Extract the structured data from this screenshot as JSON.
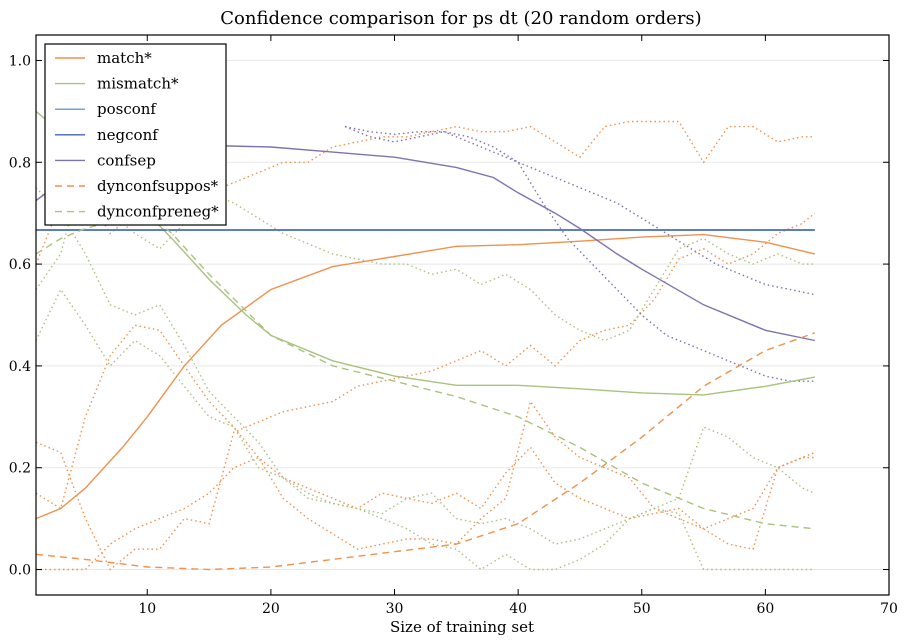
{
  "chart_data": {
    "type": "line",
    "title": "Confidence comparison for ps dt (20 random orders)",
    "xlabel": "Size of training set",
    "ylabel": "",
    "xlim": [
      1,
      70
    ],
    "ylim": [
      -0.05,
      1.05
    ],
    "xticks": [
      10,
      20,
      30,
      40,
      50,
      60,
      70
    ],
    "yticks": [
      0.0,
      0.2,
      0.4,
      0.6,
      0.8,
      1.0
    ],
    "xtick_labels": [
      "10",
      "20",
      "30",
      "40",
      "50",
      "60",
      "70"
    ],
    "ytick_labels": [
      "0.0",
      "0.2",
      "0.4",
      "0.6",
      "0.8",
      "1.0"
    ],
    "grid": "horizontal",
    "legend_position": "top-left",
    "series": [
      {
        "name": "match*",
        "color": "#f0914d",
        "style": "solid",
        "x": [
          1,
          3,
          5,
          8,
          10,
          13,
          16,
          20,
          25,
          30,
          35,
          40,
          45,
          50,
          55,
          60,
          64
        ],
        "y": [
          0.1,
          0.12,
          0.16,
          0.24,
          0.3,
          0.4,
          0.48,
          0.55,
          0.595,
          0.615,
          0.635,
          0.638,
          0.645,
          0.653,
          0.658,
          0.643,
          0.62
        ]
      },
      {
        "name": "mismatch*",
        "color": "#a9c27f",
        "style": "solid",
        "x": [
          1,
          3,
          5,
          8,
          10,
          12,
          15,
          18,
          20,
          25,
          30,
          35,
          40,
          45,
          50,
          55,
          60,
          64
        ],
        "y": [
          0.9,
          0.86,
          0.8,
          0.73,
          0.7,
          0.65,
          0.57,
          0.5,
          0.46,
          0.41,
          0.38,
          0.362,
          0.362,
          0.355,
          0.347,
          0.343,
          0.36,
          0.378
        ]
      },
      {
        "name": "posconf",
        "color": "#6d97c8",
        "style": "solid",
        "x": [
          1,
          64
        ],
        "y": [
          0.667,
          0.667
        ]
      },
      {
        "name": "negconf",
        "color": "#4365b7",
        "style": "solid",
        "x": [
          1,
          64
        ],
        "y": [
          0.667,
          0.667
        ]
      },
      {
        "name": "confsep",
        "color": "#7e73ae",
        "style": "solid",
        "x": [
          1,
          3,
          5,
          8,
          10,
          15,
          20,
          25,
          30,
          35,
          38,
          40,
          43,
          45,
          48,
          50,
          55,
          60,
          64
        ],
        "y": [
          0.725,
          0.76,
          0.8,
          0.825,
          0.835,
          0.833,
          0.83,
          0.82,
          0.81,
          0.79,
          0.77,
          0.74,
          0.7,
          0.67,
          0.62,
          0.59,
          0.52,
          0.47,
          0.45
        ]
      },
      {
        "name": "dynconfsuppos*",
        "color": "#f0914d",
        "style": "dashed",
        "x": [
          1,
          5,
          10,
          15,
          20,
          25,
          30,
          35,
          40,
          45,
          50,
          55,
          60,
          64
        ],
        "y": [
          0.03,
          0.02,
          0.005,
          0.0,
          0.005,
          0.02,
          0.035,
          0.05,
          0.09,
          0.17,
          0.26,
          0.36,
          0.43,
          0.465
        ]
      },
      {
        "name": "dynconfpreneg*",
        "color": "#a9c27f",
        "style": "dashed",
        "x": [
          1,
          3,
          5,
          8,
          10,
          12,
          15,
          20,
          25,
          30,
          35,
          40,
          45,
          50,
          55,
          60,
          64
        ],
        "y": [
          0.62,
          0.65,
          0.67,
          0.69,
          0.7,
          0.66,
          0.58,
          0.46,
          0.4,
          0.37,
          0.34,
          0.3,
          0.24,
          0.17,
          0.12,
          0.09,
          0.08
        ]
      }
    ],
    "order_traces": [
      {
        "color": "#f0914d",
        "x": [
          1,
          3,
          5,
          7,
          9,
          11,
          13,
          15,
          17,
          19,
          21,
          23,
          25,
          27,
          29,
          31,
          33,
          35,
          37,
          39,
          41,
          43,
          45,
          47,
          49,
          51,
          53,
          55,
          57,
          59,
          61,
          63,
          64
        ],
        "y": [
          0.6,
          0.72,
          0.74,
          0.66,
          0.7,
          0.68,
          0.73,
          0.74,
          0.76,
          0.78,
          0.8,
          0.8,
          0.83,
          0.84,
          0.85,
          0.85,
          0.86,
          0.87,
          0.86,
          0.86,
          0.87,
          0.84,
          0.81,
          0.87,
          0.88,
          0.88,
          0.88,
          0.8,
          0.87,
          0.87,
          0.84,
          0.85,
          0.85
        ]
      },
      {
        "color": "#f0914d",
        "x": [
          1,
          3,
          5,
          7,
          9,
          11,
          13,
          15,
          17,
          19,
          21,
          23,
          25,
          27,
          29,
          31,
          33,
          35,
          37,
          39,
          41,
          43,
          45,
          47,
          49,
          51,
          53,
          55,
          57,
          59,
          61,
          63,
          64
        ],
        "y": [
          0.25,
          0.23,
          0.1,
          0.0,
          0.04,
          0.04,
          0.1,
          0.09,
          0.27,
          0.29,
          0.31,
          0.32,
          0.33,
          0.36,
          0.37,
          0.38,
          0.39,
          0.41,
          0.43,
          0.4,
          0.44,
          0.4,
          0.45,
          0.47,
          0.48,
          0.53,
          0.61,
          0.63,
          0.6,
          0.62,
          0.66,
          0.68,
          0.7
        ]
      },
      {
        "color": "#f0914d",
        "x": [
          1,
          3,
          5,
          7,
          9,
          11,
          13,
          15,
          17,
          19,
          21,
          23,
          25,
          27,
          29,
          31,
          33,
          35,
          37,
          39,
          41,
          43,
          45,
          47,
          49,
          51,
          53,
          55,
          57,
          59,
          61,
          63,
          64
        ],
        "y": [
          0.15,
          0.12,
          0.3,
          0.42,
          0.48,
          0.47,
          0.4,
          0.33,
          0.28,
          0.22,
          0.18,
          0.16,
          0.14,
          0.12,
          0.15,
          0.14,
          0.13,
          0.15,
          0.12,
          0.19,
          0.24,
          0.17,
          0.14,
          0.12,
          0.1,
          0.11,
          0.12,
          0.08,
          0.1,
          0.12,
          0.2,
          0.22,
          0.23
        ]
      },
      {
        "color": "#f0914d",
        "x": [
          1,
          3,
          5,
          7,
          9,
          11,
          13,
          15,
          17,
          19,
          21,
          23,
          25,
          27,
          29,
          31,
          33,
          35,
          37,
          39,
          41,
          43,
          45,
          47,
          49,
          51,
          53,
          55,
          57,
          59,
          61,
          63,
          64
        ],
        "y": [
          0.0,
          0.0,
          0.0,
          0.05,
          0.08,
          0.1,
          0.12,
          0.15,
          0.2,
          0.22,
          0.14,
          0.1,
          0.07,
          0.04,
          0.05,
          0.06,
          0.06,
          0.05,
          0.1,
          0.14,
          0.33,
          0.26,
          0.22,
          0.2,
          0.18,
          0.12,
          0.1,
          0.08,
          0.05,
          0.04,
          0.2,
          0.22,
          0.22
        ]
      },
      {
        "color": "#a9c27f",
        "x": [
          1,
          3,
          5,
          7,
          9,
          11,
          13,
          15,
          17,
          19,
          21,
          23,
          25,
          27,
          29,
          31,
          33,
          35,
          37,
          39,
          41,
          43,
          45,
          47,
          49,
          51,
          53,
          55,
          57,
          59,
          61,
          63,
          64
        ],
        "y": [
          0.75,
          0.7,
          0.62,
          0.52,
          0.5,
          0.52,
          0.44,
          0.35,
          0.3,
          0.25,
          0.18,
          0.15,
          0.13,
          0.12,
          0.11,
          0.14,
          0.15,
          0.1,
          0.09,
          0.1,
          0.08,
          0.05,
          0.06,
          0.08,
          0.1,
          0.12,
          0.14,
          0.28,
          0.26,
          0.22,
          0.2,
          0.16,
          0.15
        ]
      },
      {
        "color": "#a9c27f",
        "x": [
          1,
          3,
          5,
          7,
          9,
          11,
          13,
          15,
          17,
          19,
          21,
          23,
          25,
          27,
          29,
          31,
          33,
          35,
          37,
          39,
          41,
          43,
          45,
          47,
          49,
          51,
          53,
          55,
          57,
          59,
          61,
          63,
          64
        ],
        "y": [
          0.55,
          0.62,
          0.8,
          0.7,
          0.66,
          0.63,
          0.68,
          0.74,
          0.72,
          0.69,
          0.66,
          0.64,
          0.62,
          0.61,
          0.6,
          0.6,
          0.58,
          0.59,
          0.56,
          0.58,
          0.55,
          0.5,
          0.47,
          0.45,
          0.47,
          0.55,
          0.63,
          0.65,
          0.62,
          0.6,
          0.62,
          0.6,
          0.6
        ]
      },
      {
        "color": "#a9c27f",
        "x": [
          1,
          3,
          5,
          7,
          9,
          11,
          13,
          15,
          17,
          19,
          21,
          23,
          25,
          27,
          29,
          31,
          33,
          35,
          37,
          39,
          41,
          43,
          45,
          47,
          49,
          51,
          53,
          55,
          57,
          59,
          61,
          63,
          64
        ],
        "y": [
          0.45,
          0.55,
          0.48,
          0.4,
          0.45,
          0.42,
          0.36,
          0.3,
          0.28,
          0.2,
          0.18,
          0.14,
          0.13,
          0.12,
          0.1,
          0.08,
          0.05,
          0.04,
          0.0,
          0.03,
          0.0,
          0.0,
          0.02,
          0.05,
          0.1,
          0.12,
          0.11,
          0.0,
          0.0,
          0.0,
          0.0,
          0.0,
          0.0
        ]
      },
      {
        "color": "#7e73ae",
        "x": [
          26,
          28,
          30,
          32,
          34,
          36,
          38,
          40,
          42,
          44,
          46,
          48,
          50,
          52,
          54,
          56,
          58,
          60,
          62,
          64
        ],
        "y": [
          0.87,
          0.86,
          0.855,
          0.86,
          0.86,
          0.84,
          0.82,
          0.8,
          0.78,
          0.76,
          0.74,
          0.72,
          0.69,
          0.66,
          0.63,
          0.6,
          0.58,
          0.56,
          0.55,
          0.54
        ]
      },
      {
        "color": "#7e73ae",
        "x": [
          26,
          28,
          30,
          32,
          34,
          36,
          38,
          40,
          42,
          44,
          46,
          48,
          50,
          52,
          54,
          56,
          58,
          60,
          62,
          64
        ],
        "y": [
          0.87,
          0.85,
          0.84,
          0.85,
          0.86,
          0.85,
          0.83,
          0.8,
          0.72,
          0.65,
          0.6,
          0.55,
          0.5,
          0.46,
          0.44,
          0.42,
          0.4,
          0.38,
          0.37,
          0.37
        ]
      }
    ]
  }
}
